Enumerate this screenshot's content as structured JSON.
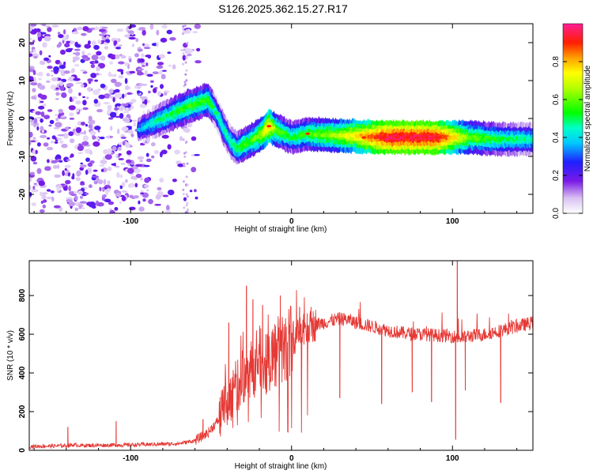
{
  "chart_data": [
    {
      "type": "heatmap",
      "title": "S126.2025.362.15.27.R17",
      "xlabel": "Height of straight line (km)",
      "ylabel": "Frequency (Hz)",
      "xlim": [
        -163,
        150
      ],
      "ylim": [
        -25,
        25
      ],
      "xticks": [
        -100,
        0,
        100
      ],
      "xtick_labels": [
        "-100",
        "0",
        "100"
      ],
      "yticks": [
        -20,
        -10,
        0,
        10,
        20
      ],
      "ytick_labels": [
        "-20",
        "-10",
        "0",
        "10",
        "20"
      ],
      "colorbar": {
        "label": "Normalized spectral amplitude",
        "range": [
          0,
          1
        ],
        "ticks": [
          0.0,
          0.2,
          0.4,
          0.6,
          0.8
        ],
        "tick_labels": [
          "0.0",
          "0.2",
          "0.4",
          "0.6",
          "0.8"
        ]
      },
      "ridge": {
        "heights": [
          -95,
          -85,
          -75,
          -65,
          -58,
          -52,
          -46,
          -42,
          -38,
          -34,
          -30,
          -26,
          -22,
          -18,
          -14,
          -10,
          -5,
          0,
          10,
          30,
          60,
          90,
          110,
          130,
          150
        ],
        "frequency": [
          -3,
          -1,
          1,
          3,
          4,
          5,
          1,
          -3,
          -6,
          -8,
          -7,
          -6,
          -5,
          -4,
          -2,
          -3,
          -4,
          -5,
          -4,
          -4.5,
          -5,
          -5,
          -5,
          -5.5,
          -5.5
        ],
        "amplitude": [
          0.3,
          0.4,
          0.45,
          0.5,
          0.5,
          0.5,
          0.4,
          0.4,
          0.4,
          0.45,
          0.5,
          0.5,
          0.55,
          0.6,
          0.75,
          0.55,
          0.5,
          0.45,
          0.5,
          0.6,
          0.9,
          0.9,
          0.55,
          0.45,
          0.4
        ]
      }
    },
    {
      "type": "line",
      "xlabel": "Height of straight line (km)",
      "ylabel": "SNR (10 * v/v)",
      "xlim": [
        -163,
        150
      ],
      "ylim": [
        0,
        980
      ],
      "xticks": [
        -100,
        0,
        100
      ],
      "xtick_labels": [
        "-100",
        "0",
        "100"
      ],
      "yticks": [
        0,
        200,
        400,
        600,
        800
      ],
      "ytick_labels": [
        "0",
        "200",
        "400",
        "600",
        "800"
      ],
      "series": [
        {
          "name": "SNR",
          "color": "#e53935",
          "x": [
            -163,
            -150,
            -140,
            -136,
            -130,
            -120,
            -110,
            -100,
            -90,
            -80,
            -70,
            -60,
            -52,
            -45,
            -40,
            -35,
            -30,
            -26,
            -22,
            -18,
            -14,
            -10,
            -6,
            -2,
            0,
            5,
            10,
            15,
            20,
            25,
            30,
            35,
            40,
            50,
            60,
            70,
            80,
            90,
            100,
            105,
            110,
            120,
            130,
            140,
            150
          ],
          "y": [
            20,
            22,
            24,
            28,
            25,
            26,
            27,
            28,
            30,
            32,
            35,
            50,
            90,
            160,
            250,
            320,
            380,
            420,
            430,
            450,
            480,
            500,
            520,
            545,
            580,
            600,
            630,
            650,
            660,
            670,
            680,
            675,
            660,
            640,
            620,
            605,
            600,
            595,
            590,
            580,
            590,
            600,
            620,
            640,
            660
          ]
        }
      ],
      "spikes": [
        {
          "x": -139,
          "y": 120
        },
        {
          "x": -109,
          "y": 150
        },
        {
          "x": -55,
          "y": 160
        },
        {
          "x": -39,
          "y": 660
        },
        {
          "x": -28,
          "y": 850
        },
        {
          "x": -24,
          "y": 780
        },
        {
          "x": -18,
          "y": 750
        },
        {
          "x": -7,
          "y": 800
        },
        {
          "x": 5,
          "y": 740
        },
        {
          "x": 103,
          "y": 980
        },
        {
          "x": 135,
          "y": 600
        },
        {
          "x": 145,
          "y": 680
        }
      ],
      "dips": [
        {
          "x": 30,
          "y": 270
        },
        {
          "x": 56,
          "y": 240
        },
        {
          "x": 75,
          "y": 300
        },
        {
          "x": 87,
          "y": 250
        },
        {
          "x": 102,
          "y": 55
        },
        {
          "x": 108,
          "y": 310
        },
        {
          "x": 130,
          "y": 245
        }
      ]
    }
  ]
}
